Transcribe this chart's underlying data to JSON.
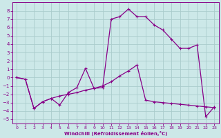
{
  "xlabel": "Windchill (Refroidissement éolien,°C)",
  "bg_color": "#cce8e8",
  "grid_color": "#aacccc",
  "line_color": "#880088",
  "xlim": [
    -0.5,
    23.5
  ],
  "ylim": [
    -5.5,
    9.0
  ],
  "xticks": [
    0,
    1,
    2,
    3,
    4,
    5,
    6,
    7,
    8,
    9,
    10,
    11,
    12,
    13,
    14,
    15,
    16,
    17,
    18,
    19,
    20,
    21,
    22,
    23
  ],
  "yticks": [
    -5,
    -4,
    -3,
    -2,
    -1,
    0,
    1,
    2,
    3,
    4,
    5,
    6,
    7,
    8
  ],
  "curve1_x": [
    0,
    1,
    2,
    3,
    4,
    5,
    6,
    7,
    8,
    9,
    10,
    11,
    12,
    13,
    14,
    15,
    16,
    17,
    18,
    19,
    20,
    21,
    22,
    23
  ],
  "curve1_y": [
    0.0,
    -0.2,
    -3.7,
    -2.9,
    -2.5,
    -3.3,
    -1.8,
    -1.2,
    1.1,
    -1.3,
    -1.2,
    7.0,
    7.3,
    8.2,
    7.3,
    7.3,
    6.3,
    5.7,
    4.6,
    3.5,
    3.5,
    3.9,
    -4.7,
    -3.5
  ],
  "curve2_x": [
    0,
    1,
    2,
    3,
    4,
    5,
    6,
    7,
    8,
    9,
    10,
    11,
    12,
    13,
    14,
    15,
    16,
    17,
    18,
    19,
    20,
    21,
    22,
    23
  ],
  "curve2_y": [
    0.0,
    -0.2,
    -3.7,
    -2.9,
    -2.5,
    -2.2,
    -2.0,
    -1.8,
    -1.5,
    -1.3,
    -1.0,
    -0.5,
    0.2,
    0.8,
    1.5,
    -2.7,
    -2.9,
    -3.0,
    -3.1,
    -3.2,
    -3.3,
    -3.4,
    -3.5,
    -3.6
  ]
}
